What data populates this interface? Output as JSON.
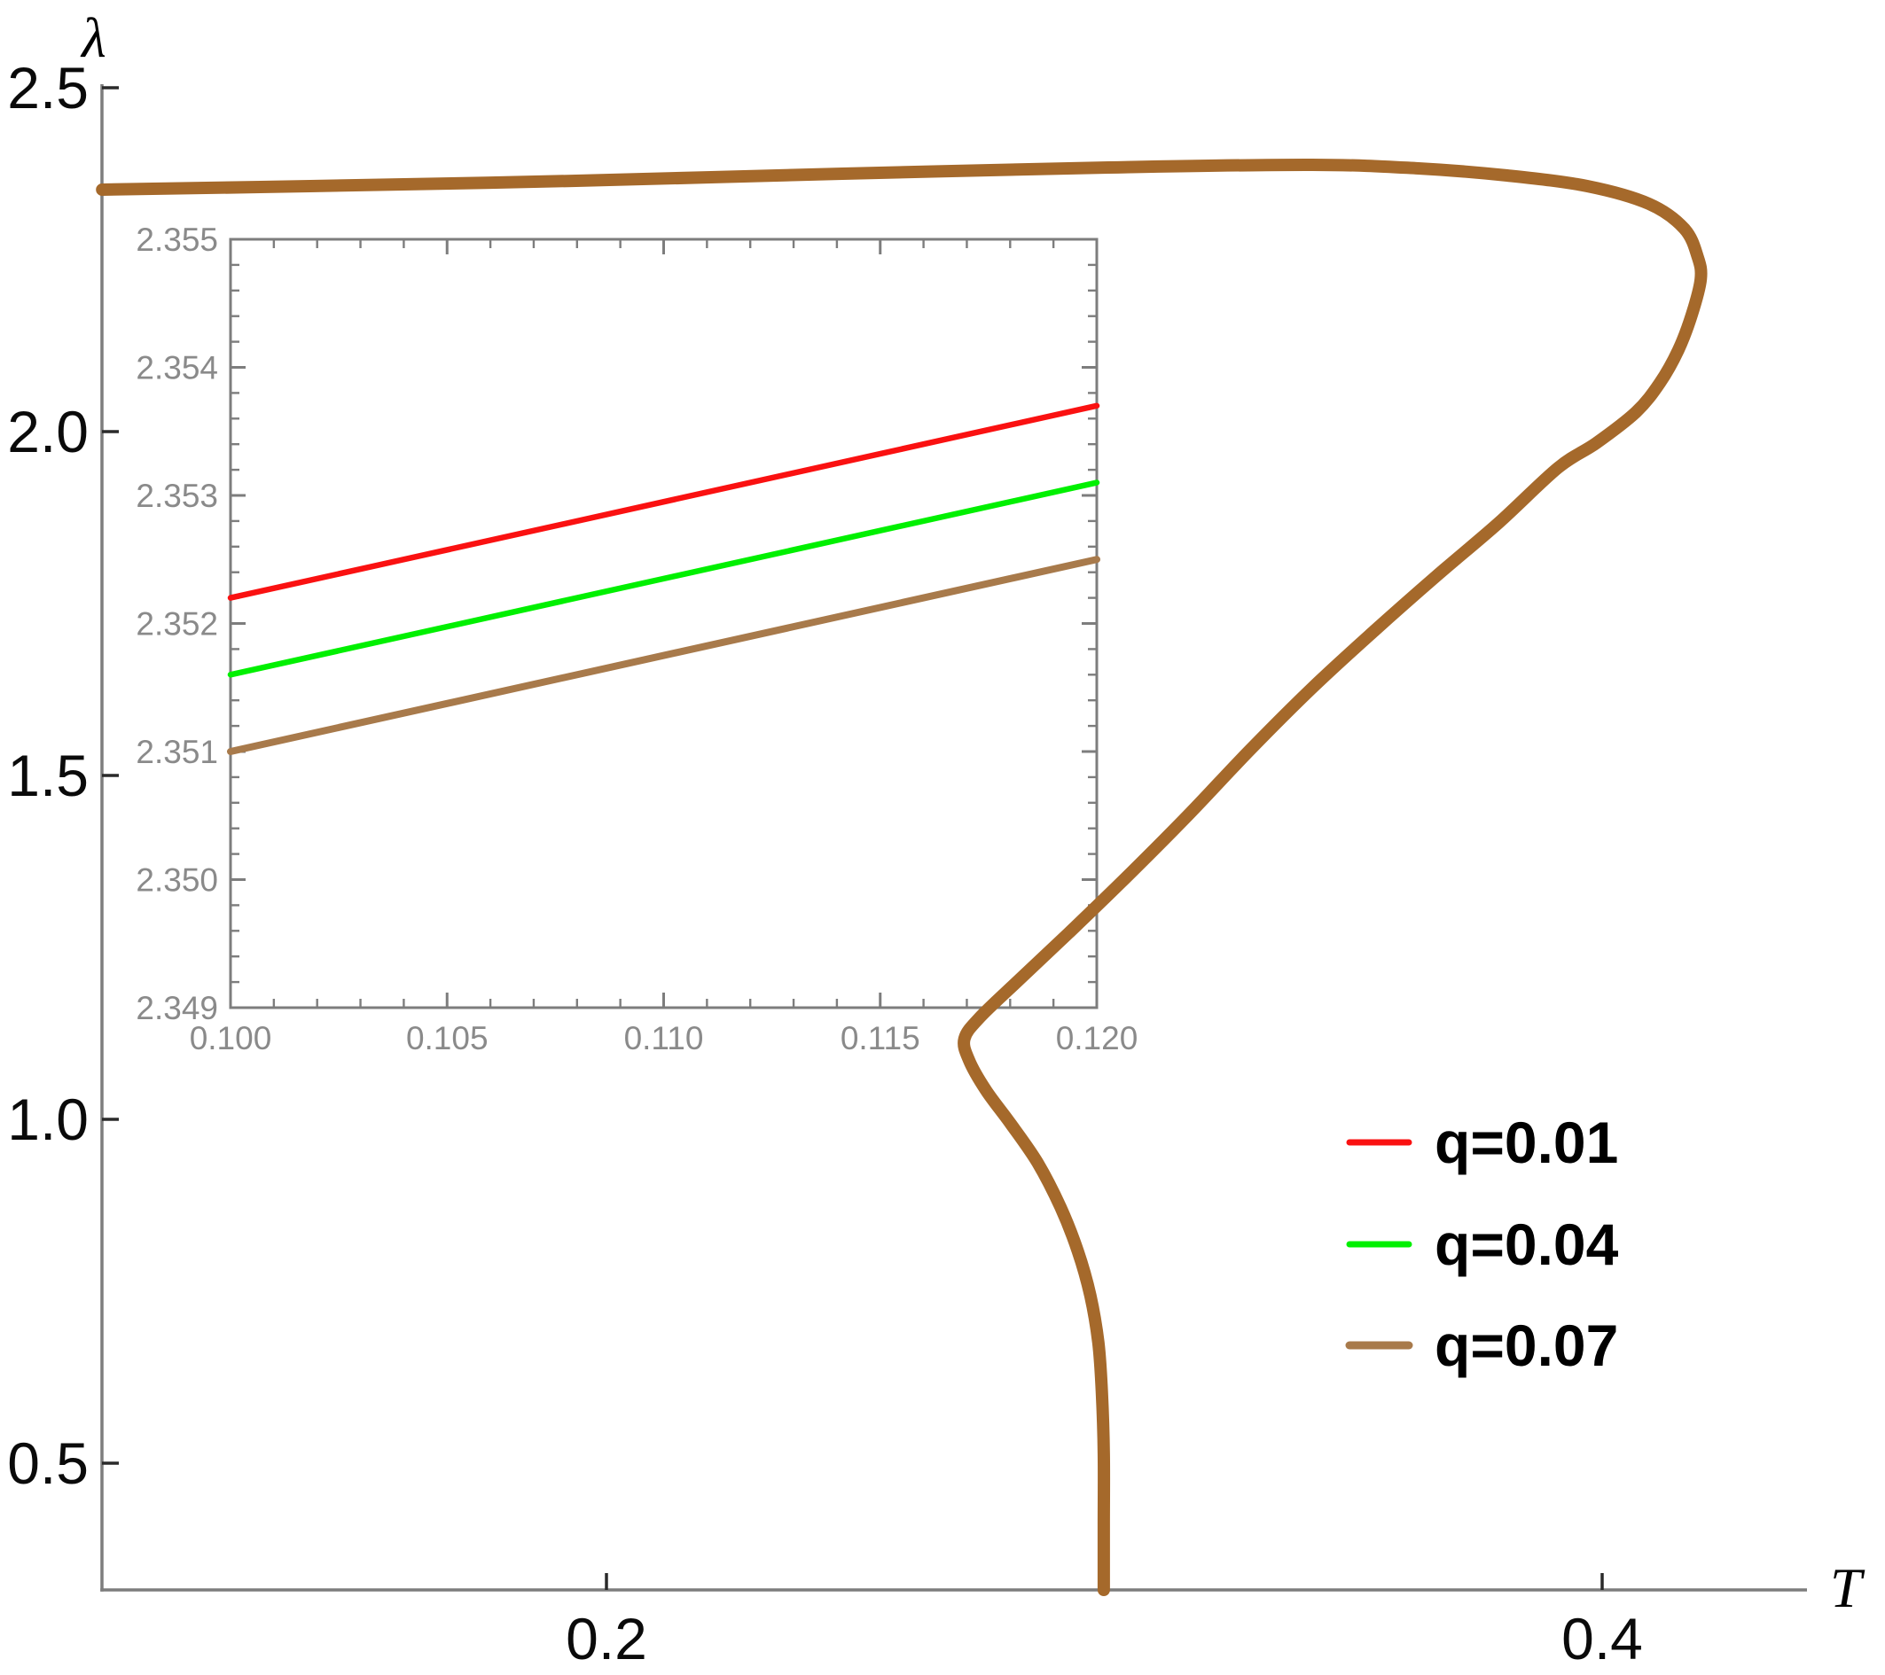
{
  "figure": {
    "background": "#ffffff",
    "axis_color": "#7d7d7d",
    "main_tick_color": "#2a2a2a",
    "inset_tick_color": "#7d7d7d",
    "inset_label_color": "#8a8a8a"
  },
  "main_plot": {
    "xlabel": "T",
    "ylabel": "λ",
    "x_ticks": [
      {
        "value": 0.2,
        "label": "0.2"
      },
      {
        "value": 0.4,
        "label": "0.4"
      }
    ],
    "y_ticks": [
      {
        "value": 2.5,
        "label": "2.5"
      },
      {
        "value": 2.0,
        "label": "2.0"
      },
      {
        "value": 1.5,
        "label": "1.5"
      },
      {
        "value": 1.0,
        "label": "1.0"
      },
      {
        "value": 0.5,
        "label": "0.5"
      }
    ]
  },
  "inset_plot": {
    "x_range": [
      0.1,
      0.12
    ],
    "y_range": [
      2.349,
      2.355
    ],
    "x_ticks": [
      {
        "value": 0.1,
        "label": "0.100"
      },
      {
        "value": 0.105,
        "label": "0.105"
      },
      {
        "value": 0.11,
        "label": "0.110"
      },
      {
        "value": 0.115,
        "label": "0.115"
      },
      {
        "value": 0.12,
        "label": "0.120"
      }
    ],
    "y_ticks": [
      {
        "value": 2.355,
        "label": "2.355"
      },
      {
        "value": 2.354,
        "label": "2.354"
      },
      {
        "value": 2.353,
        "label": "2.353"
      },
      {
        "value": 2.352,
        "label": "2.352"
      },
      {
        "value": 2.351,
        "label": "2.351"
      },
      {
        "value": 2.35,
        "label": "2.350"
      },
      {
        "value": 2.349,
        "label": "2.349"
      }
    ],
    "x_minor_step": 0.001,
    "y_minor_step": 0.0002
  },
  "legend": {
    "items": [
      {
        "label": "q=0.01",
        "color": "#FA1111",
        "line_width": 7
      },
      {
        "label": "q=0.04",
        "color": "#00F000",
        "line_width": 7
      },
      {
        "label": "q=0.07",
        "color": "#A87A4B",
        "line_width": 9
      }
    ]
  },
  "chart_data": {
    "type": "line",
    "title": "",
    "xlabel": "T",
    "ylabel": "λ",
    "main_axes": {
      "x_ticks": [
        0.2,
        0.4
      ],
      "y_ticks": [
        0.5,
        1.0,
        1.5,
        2.0,
        2.5
      ],
      "x_range_visible": [
        0.0987,
        0.4568
      ],
      "y_range_visible": [
        0.315,
        2.505
      ],
      "grid": false
    },
    "main_curve": {
      "name": "q=0.07",
      "color": "#A5692B",
      "stroke_width": 14,
      "points": [
        [
          0.0987,
          2.3518
        ],
        [
          0.1405,
          2.3569
        ],
        [
          0.1939,
          2.3647
        ],
        [
          0.2474,
          2.375
        ],
        [
          0.3008,
          2.384
        ],
        [
          0.3418,
          2.3879
        ],
        [
          0.3631,
          2.3827
        ],
        [
          0.3809,
          2.3724
        ],
        [
          0.397,
          2.3569
        ],
        [
          0.4094,
          2.3312
        ],
        [
          0.4165,
          2.2951
        ],
        [
          0.4192,
          2.2539
        ],
        [
          0.4198,
          2.2216
        ],
        [
          0.418,
          2.1701
        ],
        [
          0.4153,
          2.1186
        ],
        [
          0.4116,
          2.0709
        ],
        [
          0.4068,
          2.0284
        ],
        [
          0.3988,
          1.9833
        ],
        [
          0.3911,
          1.9472
        ],
        [
          0.3792,
          1.8673
        ],
        [
          0.3667,
          1.79
        ],
        [
          0.3542,
          1.7101
        ],
        [
          0.3418,
          1.6276
        ],
        [
          0.3293,
          1.5374
        ],
        [
          0.3168,
          1.442
        ],
        [
          0.3044,
          1.3518
        ],
        [
          0.2928,
          1.2706
        ],
        [
          0.283,
          1.2036
        ],
        [
          0.275,
          1.1482
        ],
        [
          0.2719,
          1.1172
        ],
        [
          0.2728,
          1.0863
        ],
        [
          0.2762,
          1.0425
        ],
        [
          0.2812,
          0.9935
        ],
        [
          0.2866,
          0.9368
        ],
        [
          0.2912,
          0.8724
        ],
        [
          0.2947,
          0.808
        ],
        [
          0.2972,
          0.7436
        ],
        [
          0.2988,
          0.6753
        ],
        [
          0.2995,
          0.6044
        ],
        [
          0.2999,
          0.5142
        ],
        [
          0.2999,
          0.4111
        ],
        [
          0.2999,
          0.3157
        ]
      ]
    },
    "inset_series": [
      {
        "name": "q=0.01",
        "color": "#FA1111",
        "stroke_width": 6.5,
        "points": [
          [
            0.1,
            2.3522
          ],
          [
            0.12,
            2.3537
          ]
        ]
      },
      {
        "name": "q=0.04",
        "color": "#00F000",
        "stroke_width": 6.5,
        "points": [
          [
            0.1,
            2.3516
          ],
          [
            0.12,
            2.3531
          ]
        ]
      },
      {
        "name": "q=0.07",
        "color": "#A87A4B",
        "stroke_width": 8,
        "points": [
          [
            0.1,
            2.351
          ],
          [
            0.12,
            2.3525
          ]
        ]
      }
    ],
    "legend_position": "lower right",
    "inset_position": "upper left"
  }
}
